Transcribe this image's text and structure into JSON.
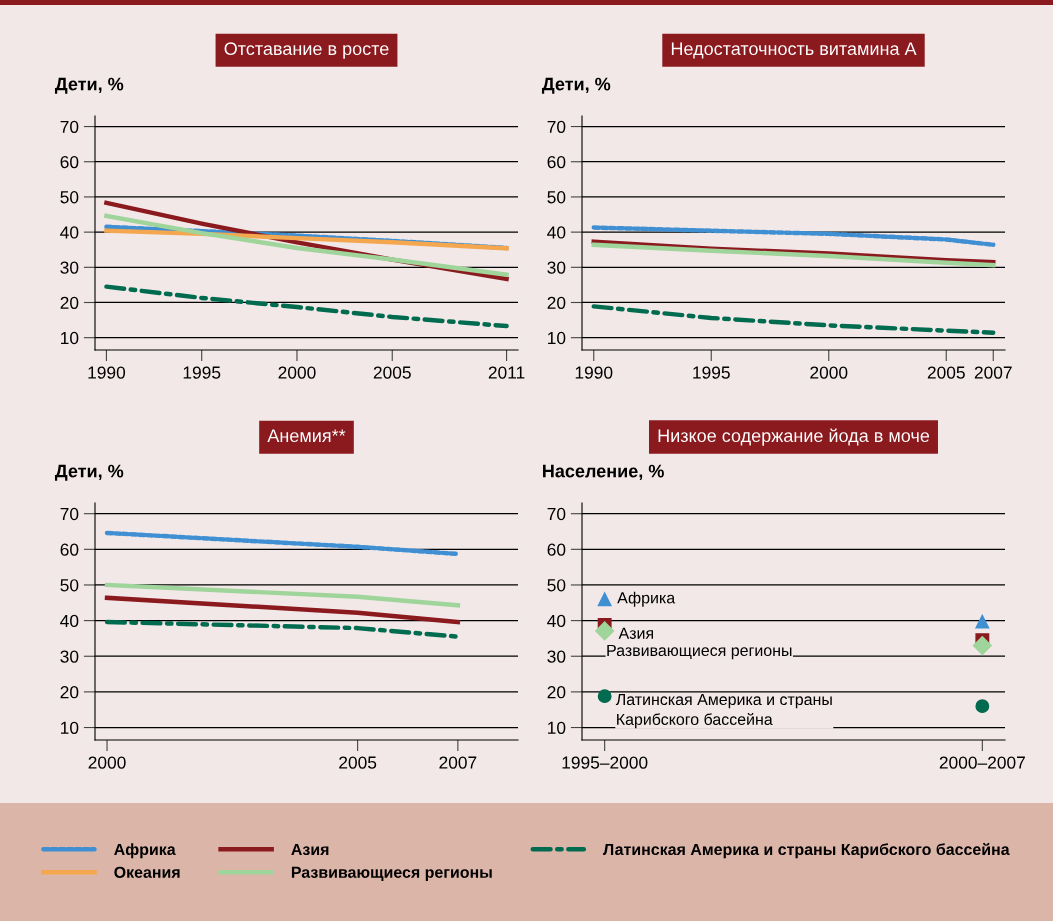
{
  "chart_data": [
    {
      "type": "line",
      "title": "Отставание в росте",
      "ylabel": "Дети, %",
      "x": [
        1990,
        1995,
        2000,
        2005,
        2011
      ],
      "xlim": [
        1989.4,
        2011.6
      ],
      "xticks": [
        1990,
        1995,
        2000,
        2005,
        2011
      ],
      "ylim": [
        6.5,
        73
      ],
      "yticks": [
        10,
        20,
        30,
        40,
        50,
        60,
        70
      ],
      "grid": "y",
      "legend": "bottom",
      "series": [
        {
          "name": "Африка",
          "color": "#3f8fd2",
          "line_style": "dotted",
          "values": [
            41.5,
            40.3,
            39,
            37.5,
            35.5
          ]
        },
        {
          "name": "Азия",
          "color": "#8b1a1f",
          "line_style": "solid",
          "values": [
            48.3,
            42.4,
            37.1,
            32.2,
            26.7
          ]
        },
        {
          "name": "Латинская Америка и страны Карибского бассейна",
          "color": "#006b4f",
          "line_style": "dashdot",
          "values": [
            24.5,
            21.3,
            18.7,
            15.9,
            13.3
          ]
        },
        {
          "name": "Океания",
          "color": "#f4a74f",
          "line_style": "solid",
          "values": [
            40.4,
            39.5,
            38.3,
            37.1,
            35.4
          ]
        },
        {
          "name": "Развивающиеся регионы",
          "color": "#9fd49a",
          "line_style": "solid",
          "values": [
            44.6,
            39.7,
            35.5,
            32.2,
            27.9
          ]
        }
      ]
    },
    {
      "type": "line",
      "title": "Недостаточность витамина А",
      "ylabel": "Дети, %",
      "x": [
        1990,
        1995,
        2000,
        2005,
        2007
      ],
      "xlim": [
        1989.5,
        2007.5
      ],
      "xticks": [
        1990,
        1995,
        2000,
        2005,
        2007
      ],
      "ylim": [
        6.5,
        73
      ],
      "yticks": [
        10,
        20,
        30,
        40,
        50,
        60,
        70
      ],
      "grid": "y",
      "series": [
        {
          "color": "#3f8fd2",
          "line_style": "dotted",
          "values": [
            41.3,
            40.4,
            39.5,
            37.9,
            36.4
          ]
        },
        {
          "color": "#8b1a1f",
          "line_style": "solid",
          "values": [
            37.3,
            35.3,
            33.9,
            32,
            31.5
          ]
        },
        {
          "color": "#9fd49a",
          "line_style": "solid",
          "values": [
            36.4,
            34.7,
            33.2,
            31.3,
            30.6
          ]
        },
        {
          "color": "#006b4f",
          "line_style": "dashdot",
          "values": [
            18.9,
            15.6,
            13.5,
            12,
            11.4
          ]
        }
      ]
    },
    {
      "type": "line",
      "title": "Анемия**",
      "ylabel": "Дети, %",
      "x": [
        2000,
        2005,
        2007
      ],
      "xlim": [
        1999.76,
        2008.2
      ],
      "xticks": [
        2000,
        2005,
        2007
      ],
      "ylim": [
        6.5,
        73
      ],
      "yticks": [
        10,
        20,
        30,
        40,
        50,
        60,
        70
      ],
      "grid": "y",
      "series": [
        {
          "color": "#3f8fd2",
          "line_style": "dotted",
          "values": [
            64.6,
            60.7,
            58.7
          ]
        },
        {
          "color": "#9fd49a",
          "line_style": "solid",
          "values": [
            50,
            46.7,
            44.3
          ]
        },
        {
          "color": "#8b1a1f",
          "line_style": "solid",
          "values": [
            46.4,
            42.2,
            39.6
          ]
        },
        {
          "color": "#006b4f",
          "line_style": "dashdot",
          "values": [
            39.6,
            37.9,
            35.5
          ]
        }
      ]
    },
    {
      "type": "scatter",
      "title": "Низкое содержание йода в моче",
      "ylabel": "Население, %",
      "categories": [
        "1995–2000",
        "2000–2007"
      ],
      "ylim": [
        6.5,
        73
      ],
      "yticks": [
        10,
        20,
        30,
        40,
        50,
        60,
        70
      ],
      "grid": "y",
      "series": [
        {
          "name": "Африка",
          "color": "#3f8fd2",
          "marker": "triangle",
          "values": [
            46,
            39.7
          ]
        },
        {
          "name": "Азия",
          "color": "#8b1a1f",
          "marker": "square",
          "values": [
            38.8,
            34.5
          ]
        },
        {
          "name": "Развивающиеся регионы",
          "color": "#9fd49a",
          "marker": "diamond",
          "values": [
            37.1,
            33
          ]
        },
        {
          "name": "Латинская Америка и страны\nКарибского бассейна",
          "color": "#006b4f",
          "marker": "circle",
          "values": [
            18.8,
            16
          ]
        }
      ]
    }
  ]
}
